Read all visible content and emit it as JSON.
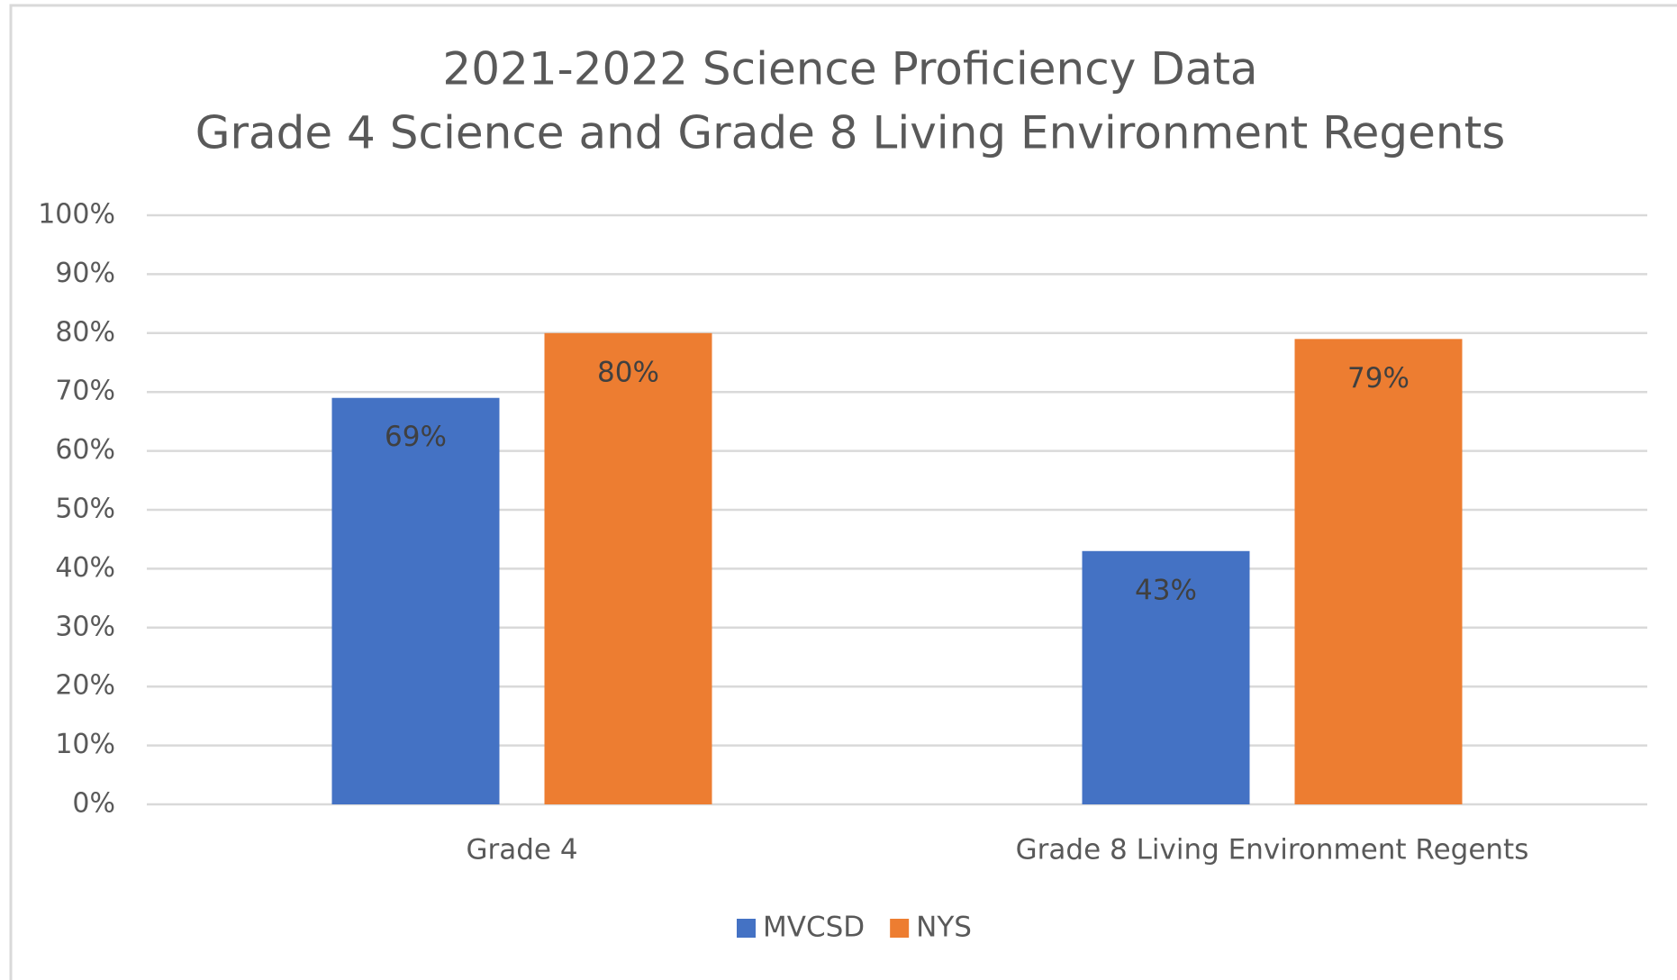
{
  "chart_data": {
    "type": "bar",
    "title": [
      "2021-2022 Science Proficiency Data",
      "Grade 4 Science and Grade 8 Living Environment Regents"
    ],
    "categories": [
      "Grade 4",
      "Grade 8 Living Environment Regents"
    ],
    "series": [
      {
        "name": "MVCSD",
        "color": "#4472c4",
        "values": [
          69,
          43
        ],
        "value_labels": [
          "69%",
          "43%"
        ]
      },
      {
        "name": "NYS",
        "color": "#ed7d31",
        "values": [
          80,
          79
        ],
        "value_labels": [
          "80%",
          "79%"
        ]
      }
    ],
    "ylim": [
      0,
      100
    ],
    "yticks": [
      {
        "value": 0,
        "label": "0%"
      },
      {
        "value": 10,
        "label": "10%"
      },
      {
        "value": 20,
        "label": "20%"
      },
      {
        "value": 30,
        "label": "30%"
      },
      {
        "value": 40,
        "label": "40%"
      },
      {
        "value": 50,
        "label": "50%"
      },
      {
        "value": 60,
        "label": "60%"
      },
      {
        "value": 70,
        "label": "70%"
      },
      {
        "value": 80,
        "label": "80%"
      },
      {
        "value": 90,
        "label": "90%"
      },
      {
        "value": 100,
        "label": "100%"
      }
    ],
    "grid": true,
    "legend": "bottom"
  }
}
